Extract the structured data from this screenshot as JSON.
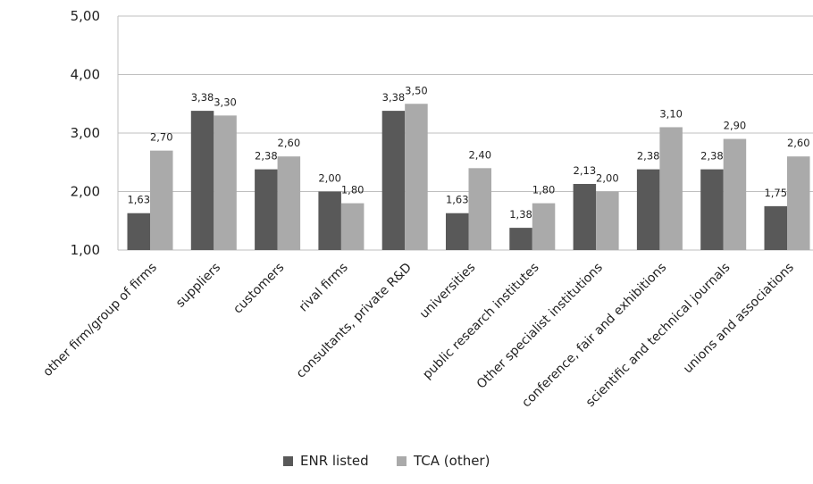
{
  "chart_data": {
    "type": "bar",
    "categories": [
      "other firm/group of firms",
      "suppliers",
      "customers",
      "rival firms",
      "consultants, private R&D",
      "universities",
      "public research institutes",
      "Other specialist institutions",
      "conference, fair and exhibitions",
      "scientific and technical journals",
      "unions and associations"
    ],
    "series": [
      {
        "name": "ENR listed",
        "color": "#595959",
        "values": [
          1.63,
          3.38,
          2.38,
          2.0,
          3.38,
          1.63,
          1.38,
          2.13,
          2.38,
          2.38,
          1.75
        ],
        "labels": [
          "1,63",
          "3,38",
          "2,38",
          "2,00",
          "3,38",
          "1,63",
          "1,38",
          "2,13",
          "2,38",
          "2,38",
          "1,75"
        ]
      },
      {
        "name": "TCA (other)",
        "color": "#aaaaaa",
        "values": [
          2.7,
          3.3,
          2.6,
          1.8,
          3.5,
          2.4,
          1.8,
          2.0,
          3.1,
          2.9,
          2.6
        ],
        "labels": [
          "2,70",
          "3,30",
          "2,60",
          "1,80",
          "3,50",
          "2,40",
          "1,80",
          "2,00",
          "3,10",
          "2,90",
          "2,60"
        ]
      }
    ],
    "ylim": [
      1.0,
      5.0
    ],
    "yticks": [
      1.0,
      2.0,
      3.0,
      4.0,
      5.0
    ],
    "ytick_labels": [
      "1,00",
      "2,00",
      "3,00",
      "4,00",
      "5,00"
    ],
    "grid": true,
    "gridline_color": "#bfbfbf",
    "legend_position": "bottom"
  }
}
